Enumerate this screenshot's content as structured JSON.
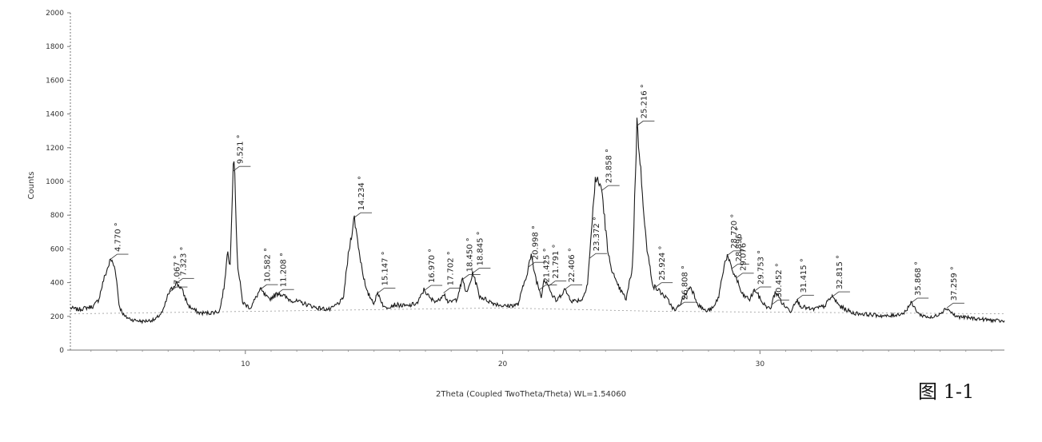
{
  "figure_caption": "图 1-1",
  "chart_data": {
    "type": "line",
    "xlabel": "2Theta (Coupled TwoTheta/Theta) WL=1.54060",
    "ylabel": "Counts",
    "xlim": [
      3.2,
      39.5
    ],
    "ylim": [
      0,
      2000
    ],
    "x_ticks": [
      10,
      20,
      30
    ],
    "y_ticks": [
      0,
      200,
      400,
      600,
      800,
      1000,
      1200,
      1400,
      1600,
      1800,
      2000
    ],
    "grid": false,
    "series": [
      {
        "points": [
          [
            3.2,
            250
          ],
          [
            3.5,
            240
          ],
          [
            3.8,
            250
          ],
          [
            4.1,
            260
          ],
          [
            4.3,
            300
          ],
          [
            4.5,
            420
          ],
          [
            4.77,
            540
          ],
          [
            4.95,
            480
          ],
          [
            5.1,
            260
          ],
          [
            5.3,
            200
          ],
          [
            5.6,
            180
          ],
          [
            6.0,
            170
          ],
          [
            6.5,
            180
          ],
          [
            6.8,
            230
          ],
          [
            7.0,
            330
          ],
          [
            7.3,
            400
          ],
          [
            7.5,
            370
          ],
          [
            7.8,
            260
          ],
          [
            8.2,
            220
          ],
          [
            8.6,
            220
          ],
          [
            9.0,
            230
          ],
          [
            9.2,
            400
          ],
          [
            9.3,
            600
          ],
          [
            9.4,
            480
          ],
          [
            9.55,
            1200
          ],
          [
            9.7,
            500
          ],
          [
            9.9,
            280
          ],
          [
            10.2,
            250
          ],
          [
            10.58,
            360
          ],
          [
            10.9,
            300
          ],
          [
            11.3,
            340
          ],
          [
            11.7,
            300
          ],
          [
            12.2,
            280
          ],
          [
            12.8,
            250
          ],
          [
            13.3,
            240
          ],
          [
            13.8,
            300
          ],
          [
            14.0,
            560
          ],
          [
            14.23,
            790
          ],
          [
            14.45,
            560
          ],
          [
            14.7,
            350
          ],
          [
            15.0,
            280
          ],
          [
            15.15,
            340
          ],
          [
            15.4,
            250
          ],
          [
            15.8,
            270
          ],
          [
            16.3,
            260
          ],
          [
            16.7,
            280
          ],
          [
            16.95,
            360
          ],
          [
            17.2,
            300
          ],
          [
            17.5,
            290
          ],
          [
            17.7,
            340
          ],
          [
            17.9,
            280
          ],
          [
            18.2,
            300
          ],
          [
            18.45,
            420
          ],
          [
            18.6,
            330
          ],
          [
            18.85,
            460
          ],
          [
            19.1,
            320
          ],
          [
            19.6,
            280
          ],
          [
            20.1,
            260
          ],
          [
            20.6,
            270
          ],
          [
            20.95,
            460
          ],
          [
            21.1,
            560
          ],
          [
            21.3,
            420
          ],
          [
            21.5,
            320
          ],
          [
            21.6,
            420
          ],
          [
            21.75,
            400
          ],
          [
            21.9,
            330
          ],
          [
            22.1,
            290
          ],
          [
            22.4,
            360
          ],
          [
            22.7,
            290
          ],
          [
            23.1,
            300
          ],
          [
            23.3,
            400
          ],
          [
            23.45,
            700
          ],
          [
            23.6,
            1020
          ],
          [
            23.85,
            960
          ],
          [
            24.1,
            560
          ],
          [
            24.4,
            400
          ],
          [
            24.8,
            300
          ],
          [
            25.05,
            500
          ],
          [
            25.22,
            1350
          ],
          [
            25.4,
            1000
          ],
          [
            25.6,
            600
          ],
          [
            25.85,
            380
          ],
          [
            26.1,
            350
          ],
          [
            26.4,
            300
          ],
          [
            26.7,
            230
          ],
          [
            27.0,
            300
          ],
          [
            27.3,
            380
          ],
          [
            27.6,
            270
          ],
          [
            27.9,
            230
          ],
          [
            28.2,
            250
          ],
          [
            28.4,
            320
          ],
          [
            28.6,
            500
          ],
          [
            28.72,
            560
          ],
          [
            28.9,
            480
          ],
          [
            29.1,
            420
          ],
          [
            29.3,
            330
          ],
          [
            29.6,
            300
          ],
          [
            29.8,
            360
          ],
          [
            30.1,
            280
          ],
          [
            30.4,
            240
          ],
          [
            30.6,
            350
          ],
          [
            30.9,
            270
          ],
          [
            31.2,
            230
          ],
          [
            31.4,
            300
          ],
          [
            31.6,
            260
          ],
          [
            32.0,
            240
          ],
          [
            32.5,
            260
          ],
          [
            32.8,
            320
          ],
          [
            33.1,
            260
          ],
          [
            33.6,
            220
          ],
          [
            34.3,
            210
          ],
          [
            35.0,
            200
          ],
          [
            35.6,
            220
          ],
          [
            35.87,
            280
          ],
          [
            36.2,
            210
          ],
          [
            36.7,
            190
          ],
          [
            37.0,
            220
          ],
          [
            37.26,
            250
          ],
          [
            37.6,
            200
          ],
          [
            38.2,
            190
          ],
          [
            38.8,
            180
          ],
          [
            39.5,
            170
          ]
        ]
      }
    ],
    "peak_labels": [
      {
        "x": 4.77,
        "text": "4.770 °"
      },
      {
        "x": 7.067,
        "text": "7.067 °"
      },
      {
        "x": 7.323,
        "text": "7.323 °"
      },
      {
        "x": 9.521,
        "text": "9.521 °"
      },
      {
        "x": 10.582,
        "text": "10.582 °"
      },
      {
        "x": 11.208,
        "text": "11.208 °"
      },
      {
        "x": 14.234,
        "text": "14.234 °"
      },
      {
        "x": 15.147,
        "text": "15.147 °"
      },
      {
        "x": 16.97,
        "text": "16.970 °"
      },
      {
        "x": 17.702,
        "text": "17.702 °"
      },
      {
        "x": 18.45,
        "text": "18.450 °"
      },
      {
        "x": 18.845,
        "text": "18.845 °"
      },
      {
        "x": 20.998,
        "text": "20.998 °"
      },
      {
        "x": 21.425,
        "text": "21.425 °"
      },
      {
        "x": 21.791,
        "text": "21.791 °"
      },
      {
        "x": 22.406,
        "text": "22.406 °"
      },
      {
        "x": 23.372,
        "text": "23.372 °"
      },
      {
        "x": 23.858,
        "text": "23.858 °"
      },
      {
        "x": 25.216,
        "text": "25.216 °"
      },
      {
        "x": 25.924,
        "text": "25.924 °"
      },
      {
        "x": 26.808,
        "text": "26.808 °"
      },
      {
        "x": 28.72,
        "text": "28.720 °"
      },
      {
        "x": 28.896,
        "text": "28.896 °"
      },
      {
        "x": 29.076,
        "text": "29.076 °"
      },
      {
        "x": 29.753,
        "text": "29.753 °"
      },
      {
        "x": 30.452,
        "text": "30.452 °"
      },
      {
        "x": 31.415,
        "text": "31.415 °"
      },
      {
        "x": 32.815,
        "text": "32.815 °"
      },
      {
        "x": 35.868,
        "text": "35.868 °"
      },
      {
        "x": 37.259,
        "text": "37.259 °"
      }
    ]
  }
}
